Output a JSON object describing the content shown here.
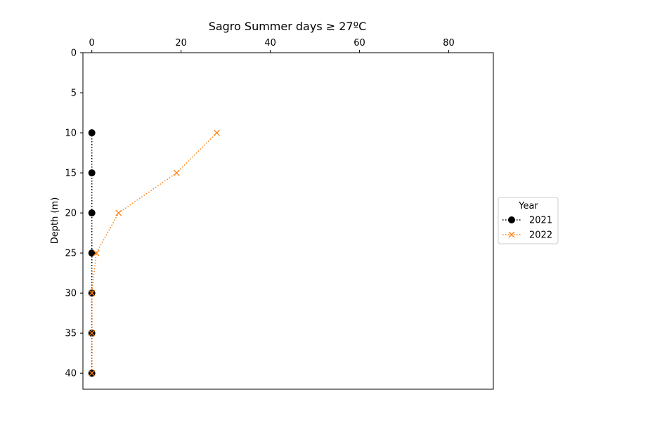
{
  "chart_data": {
    "type": "line",
    "title": "Sagro Summer days ≥ 27ºC",
    "xlabel": "",
    "ylabel": "Depth (m)",
    "xlim": [
      -2,
      90
    ],
    "ylim": [
      42,
      0
    ],
    "x_ticks": [
      0,
      20,
      40,
      60,
      80
    ],
    "y_ticks": [
      0,
      5,
      10,
      15,
      20,
      25,
      30,
      35,
      40
    ],
    "x_axis_position": "top",
    "y_inverted": true,
    "grid": false,
    "legend": {
      "title": "Year",
      "placement": "outside-right"
    },
    "series": [
      {
        "name": "2021",
        "color": "#000000",
        "linestyle": "dotted",
        "marker": "circle",
        "points": [
          {
            "x": 0,
            "y": 10
          },
          {
            "x": 0,
            "y": 15
          },
          {
            "x": 0,
            "y": 20
          },
          {
            "x": 0,
            "y": 25
          },
          {
            "x": 0,
            "y": 30
          },
          {
            "x": 0,
            "y": 35
          },
          {
            "x": 0,
            "y": 40
          }
        ]
      },
      {
        "name": "2022",
        "color": "#ff7f0e",
        "linestyle": "dotted",
        "marker": "x",
        "points": [
          {
            "x": 28,
            "y": 10
          },
          {
            "x": 19,
            "y": 15
          },
          {
            "x": 6,
            "y": 20
          },
          {
            "x": 1,
            "y": 25
          },
          {
            "x": 0,
            "y": 30
          },
          {
            "x": 0,
            "y": 35
          },
          {
            "x": 0,
            "y": 40
          }
        ]
      }
    ]
  }
}
